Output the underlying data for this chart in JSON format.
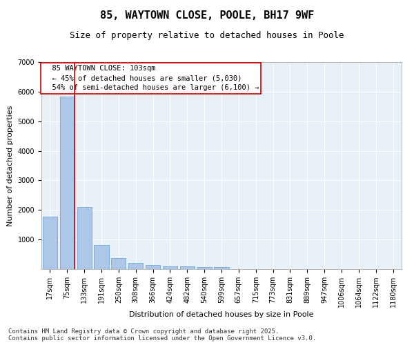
{
  "title": "85, WAYTOWN CLOSE, POOLE, BH17 9WF",
  "subtitle": "Size of property relative to detached houses in Poole",
  "xlabel": "Distribution of detached houses by size in Poole",
  "ylabel": "Number of detached properties",
  "categories": [
    "17sqm",
    "75sqm",
    "133sqm",
    "191sqm",
    "250sqm",
    "308sqm",
    "366sqm",
    "424sqm",
    "482sqm",
    "540sqm",
    "599sqm",
    "657sqm",
    "715sqm",
    "773sqm",
    "831sqm",
    "889sqm",
    "947sqm",
    "1006sqm",
    "1064sqm",
    "1122sqm",
    "1180sqm"
  ],
  "values": [
    1780,
    5830,
    2100,
    820,
    370,
    220,
    130,
    100,
    95,
    70,
    60,
    0,
    0,
    0,
    0,
    0,
    0,
    0,
    0,
    0,
    0
  ],
  "bar_color": "#aec6e8",
  "bar_edge_color": "#5a9fd4",
  "vline_color": "#cc0000",
  "annotation_text": "  85 WAYTOWN CLOSE: 103sqm\n  ← 45% of detached houses are smaller (5,030)\n  54% of semi-detached houses are larger (6,100) →",
  "annotation_box_color": "#ffffff",
  "annotation_box_edge_color": "#cc0000",
  "ylim": [
    0,
    7000
  ],
  "yticks": [
    0,
    1000,
    2000,
    3000,
    4000,
    5000,
    6000,
    7000
  ],
  "bg_color": "#e8f0f8",
  "grid_color": "#ffffff",
  "footer": "Contains HM Land Registry data © Crown copyright and database right 2025.\nContains public sector information licensed under the Open Government Licence v3.0.",
  "title_fontsize": 11,
  "subtitle_fontsize": 9,
  "axis_label_fontsize": 8,
  "tick_fontsize": 7,
  "annotation_fontsize": 7.5,
  "footer_fontsize": 6.5
}
